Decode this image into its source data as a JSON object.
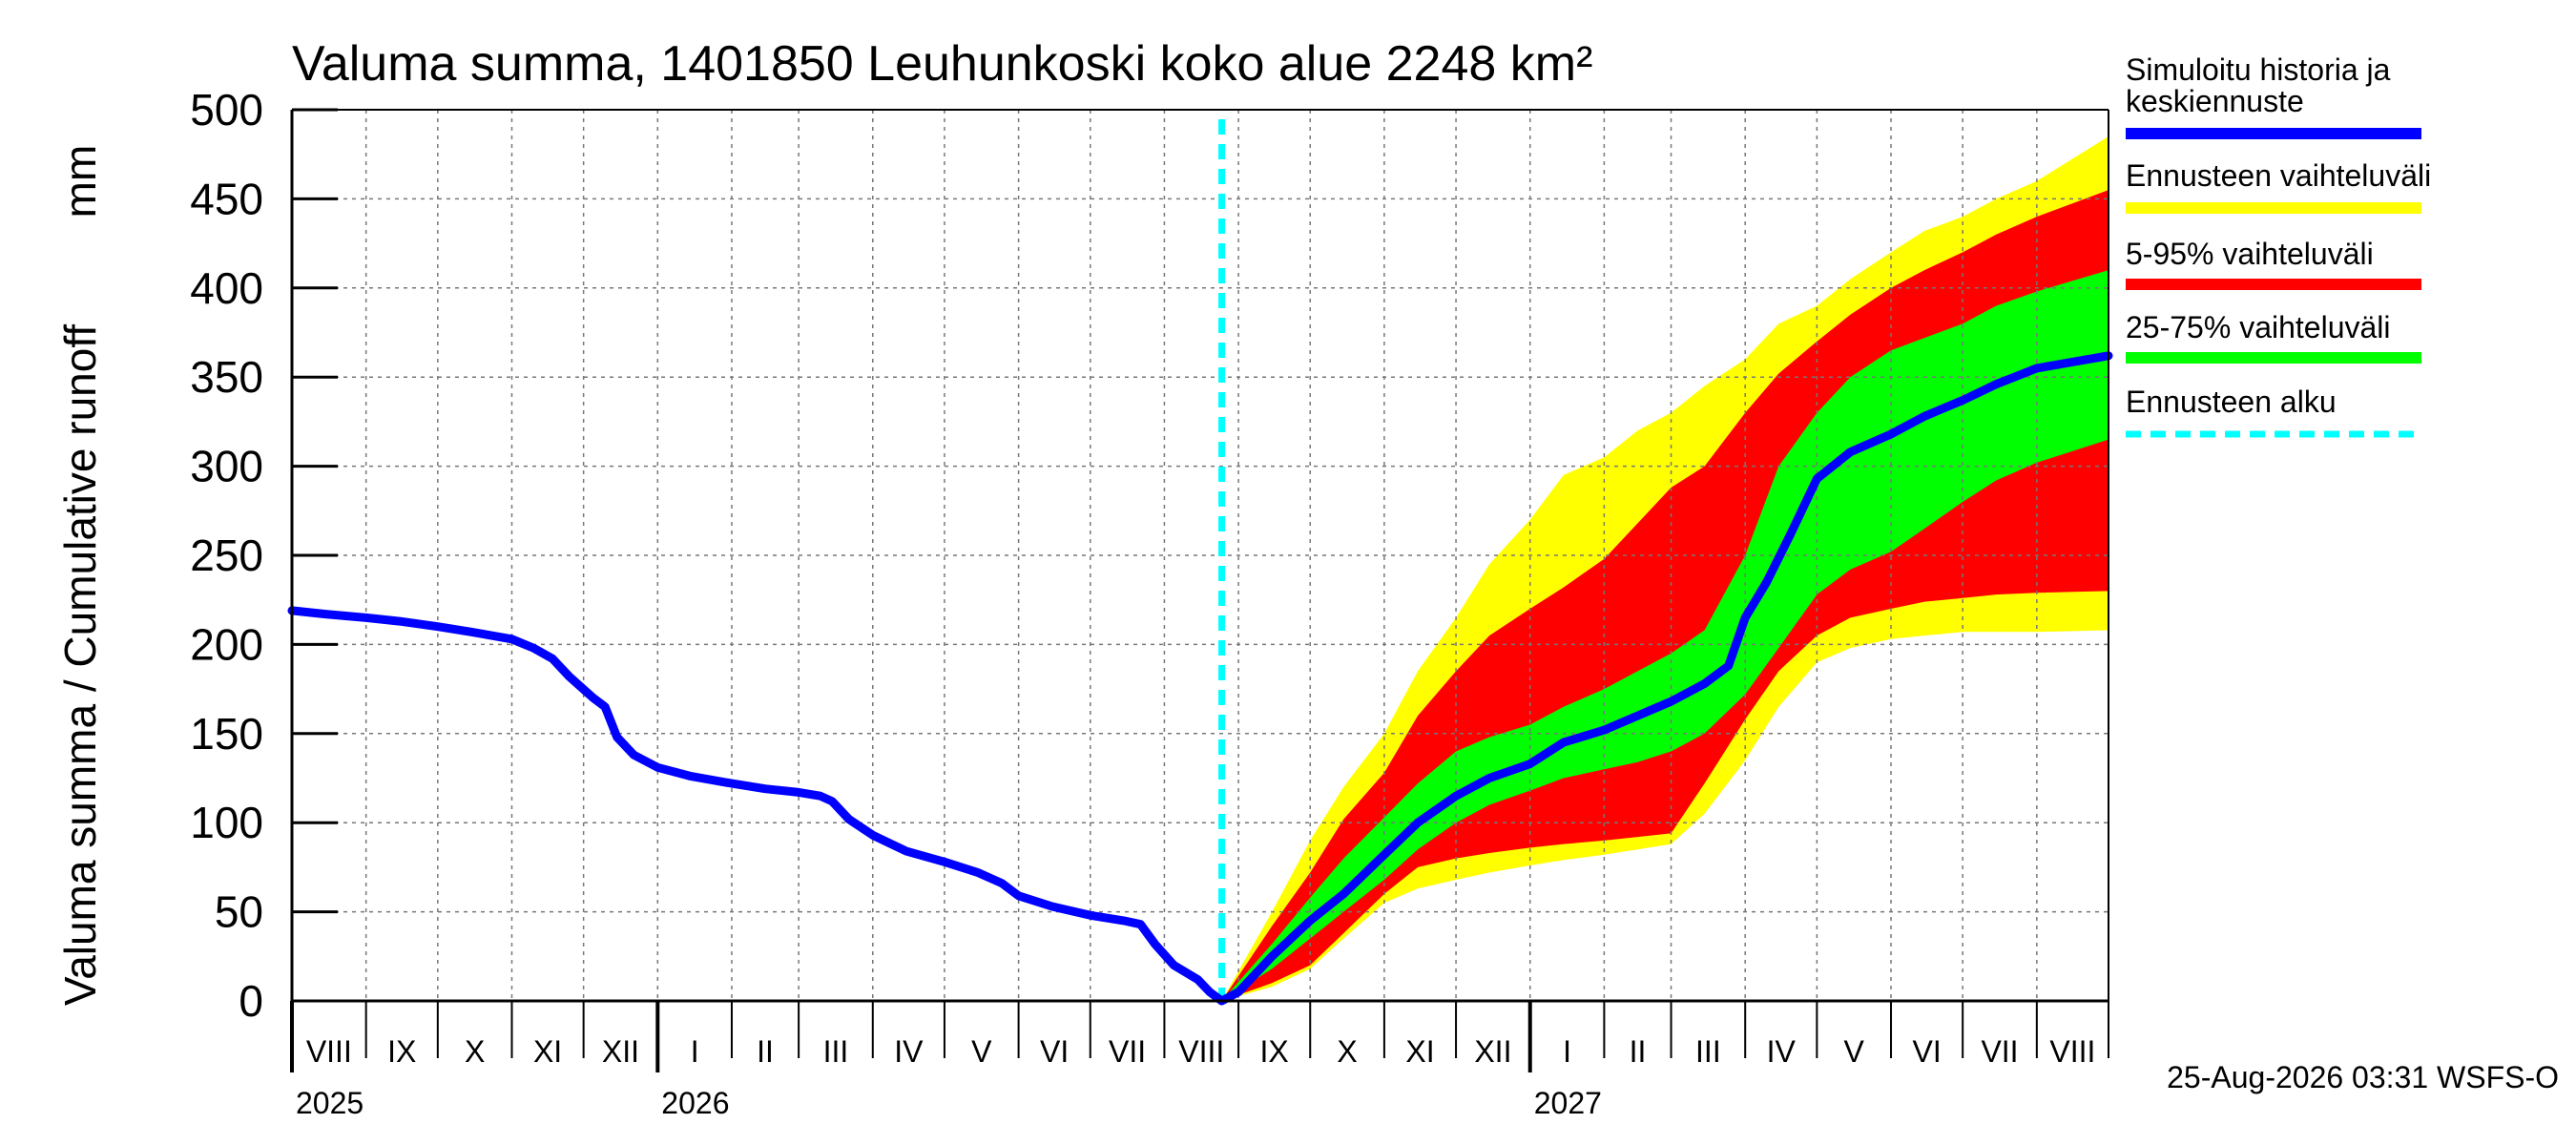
{
  "chart_data": {
    "type": "area",
    "title": "Valuma summa, 1401850 Leuhunkoski koko alue 2248 km²",
    "ylabel": "Valuma summa / Cumulative runoff",
    "yunit": "mm",
    "ylim": [
      0,
      500
    ],
    "yticks": [
      0,
      50,
      100,
      150,
      200,
      250,
      300,
      350,
      400,
      450,
      500
    ],
    "xlim": [
      "2025-08-01",
      "2027-08-31"
    ],
    "grid": true,
    "legend_position": "right",
    "forecast_start": "2026-08-25",
    "month_labels": [
      {
        "label": "VIII",
        "date": "2025-08-01"
      },
      {
        "label": "IX",
        "date": "2025-09-01"
      },
      {
        "label": "X",
        "date": "2025-10-01"
      },
      {
        "label": "XI",
        "date": "2025-11-01"
      },
      {
        "label": "XII",
        "date": "2025-12-01"
      },
      {
        "label": "I",
        "date": "2026-01-01"
      },
      {
        "label": "II",
        "date": "2026-02-01"
      },
      {
        "label": "III",
        "date": "2026-03-01"
      },
      {
        "label": "IV",
        "date": "2026-04-01"
      },
      {
        "label": "V",
        "date": "2026-05-01"
      },
      {
        "label": "VI",
        "date": "2026-06-01"
      },
      {
        "label": "VII",
        "date": "2026-07-01"
      },
      {
        "label": "VIII",
        "date": "2026-08-01"
      },
      {
        "label": "IX",
        "date": "2026-09-01"
      },
      {
        "label": "X",
        "date": "2026-10-01"
      },
      {
        "label": "XI",
        "date": "2026-11-01"
      },
      {
        "label": "XII",
        "date": "2026-12-01"
      },
      {
        "label": "I",
        "date": "2027-01-01"
      },
      {
        "label": "II",
        "date": "2027-02-01"
      },
      {
        "label": "III",
        "date": "2027-03-01"
      },
      {
        "label": "IV",
        "date": "2027-04-01"
      },
      {
        "label": "V",
        "date": "2027-05-01"
      },
      {
        "label": "VI",
        "date": "2027-06-01"
      },
      {
        "label": "VII",
        "date": "2027-07-01"
      },
      {
        "label": "VIII",
        "date": "2027-08-01"
      }
    ],
    "year_labels": [
      {
        "label": "2025",
        "date": "2025-08-01"
      },
      {
        "label": "2026",
        "date": "2026-01-01"
      },
      {
        "label": "2027",
        "date": "2027-01-01"
      }
    ],
    "series": [
      {
        "name": "Simuloitu historia ja keskiennuste",
        "color": "#0000ff",
        "points": [
          [
            "2025-08-01",
            219
          ],
          [
            "2025-08-15",
            217
          ],
          [
            "2025-09-01",
            215
          ],
          [
            "2025-09-15",
            213
          ],
          [
            "2025-10-01",
            210
          ],
          [
            "2025-10-15",
            207
          ],
          [
            "2025-11-01",
            203
          ],
          [
            "2025-11-10",
            198
          ],
          [
            "2025-11-18",
            192
          ],
          [
            "2025-11-25",
            182
          ],
          [
            "2025-12-05",
            170
          ],
          [
            "2025-12-10",
            165
          ],
          [
            "2025-12-15",
            148
          ],
          [
            "2025-12-22",
            138
          ],
          [
            "2026-01-01",
            131
          ],
          [
            "2026-01-15",
            126
          ],
          [
            "2026-02-01",
            122
          ],
          [
            "2026-02-15",
            119
          ],
          [
            "2026-03-01",
            117
          ],
          [
            "2026-03-10",
            115
          ],
          [
            "2026-03-15",
            112
          ],
          [
            "2026-03-22",
            102
          ],
          [
            "2026-04-01",
            93
          ],
          [
            "2026-04-15",
            84
          ],
          [
            "2026-05-01",
            78
          ],
          [
            "2026-05-15",
            72
          ],
          [
            "2026-05-25",
            66
          ],
          [
            "2026-06-01",
            59
          ],
          [
            "2026-06-15",
            53
          ],
          [
            "2026-07-01",
            48
          ],
          [
            "2026-07-15",
            45
          ],
          [
            "2026-07-22",
            43
          ],
          [
            "2026-07-28",
            32
          ],
          [
            "2026-08-05",
            20
          ],
          [
            "2026-08-15",
            12
          ],
          [
            "2026-08-20",
            5
          ],
          [
            "2026-08-25",
            0
          ],
          [
            "2026-09-01",
            5
          ],
          [
            "2026-09-15",
            25
          ],
          [
            "2026-10-01",
            45
          ],
          [
            "2026-10-15",
            60
          ],
          [
            "2026-11-01",
            82
          ],
          [
            "2026-11-15",
            100
          ],
          [
            "2026-12-01",
            115
          ],
          [
            "2026-12-15",
            125
          ],
          [
            "2027-01-01",
            133
          ],
          [
            "2027-01-15",
            145
          ],
          [
            "2027-02-01",
            152
          ],
          [
            "2027-02-15",
            160
          ],
          [
            "2027-03-01",
            168
          ],
          [
            "2027-03-15",
            178
          ],
          [
            "2027-03-25",
            188
          ],
          [
            "2027-04-01",
            215
          ],
          [
            "2027-04-10",
            235
          ],
          [
            "2027-04-20",
            262
          ],
          [
            "2027-05-01",
            293
          ],
          [
            "2027-05-15",
            308
          ],
          [
            "2027-06-01",
            318
          ],
          [
            "2027-06-15",
            328
          ],
          [
            "2027-07-01",
            337
          ],
          [
            "2027-07-15",
            346
          ],
          [
            "2027-08-01",
            355
          ],
          [
            "2027-08-31",
            362
          ]
        ]
      },
      {
        "name": "Ennusteen vaihteluväli",
        "color": "#ffff00",
        "x": [
          "2026-08-25",
          "2026-09-15",
          "2026-10-01",
          "2026-10-15",
          "2026-11-01",
          "2026-11-15",
          "2026-12-01",
          "2026-12-15",
          "2027-01-01",
          "2027-01-15",
          "2027-02-01",
          "2027-02-15",
          "2027-03-01",
          "2027-03-15",
          "2027-04-01",
          "2027-04-15",
          "2027-05-01",
          "2027-05-15",
          "2027-06-01",
          "2027-06-15",
          "2027-07-01",
          "2027-07-15",
          "2027-08-01",
          "2027-08-31"
        ],
        "lower": [
          0,
          8,
          18,
          35,
          55,
          63,
          68,
          72,
          76,
          79,
          82,
          85,
          88,
          105,
          135,
          165,
          190,
          198,
          203,
          205,
          207,
          207,
          207,
          208
        ],
        "upper": [
          0,
          50,
          90,
          120,
          150,
          185,
          215,
          245,
          270,
          295,
          305,
          320,
          330,
          345,
          360,
          380,
          390,
          405,
          420,
          432,
          440,
          450,
          460,
          485
        ]
      },
      {
        "name": "5-95% vaihteluväli",
        "color": "#ff0000",
        "x": [
          "2026-08-25",
          "2026-09-15",
          "2026-10-01",
          "2026-10-15",
          "2026-11-01",
          "2026-11-15",
          "2026-12-01",
          "2026-12-15",
          "2027-01-01",
          "2027-01-15",
          "2027-02-01",
          "2027-02-15",
          "2027-03-01",
          "2027-03-15",
          "2027-04-01",
          "2027-04-15",
          "2027-05-01",
          "2027-05-15",
          "2027-06-01",
          "2027-06-15",
          "2027-07-01",
          "2027-07-15",
          "2027-08-01",
          "2027-08-31"
        ],
        "lower": [
          0,
          10,
          20,
          38,
          60,
          75,
          80,
          83,
          86,
          88,
          90,
          92,
          94,
          122,
          158,
          185,
          205,
          215,
          220,
          224,
          226,
          228,
          229,
          230
        ],
        "upper": [
          0,
          42,
          72,
          102,
          128,
          160,
          185,
          205,
          220,
          232,
          248,
          268,
          288,
          300,
          330,
          352,
          370,
          385,
          400,
          410,
          420,
          430,
          440,
          455
        ]
      },
      {
        "name": "25-75% vaihteluväli",
        "color": "#00ff00",
        "x": [
          "2026-08-25",
          "2026-09-15",
          "2026-10-01",
          "2026-10-15",
          "2026-11-01",
          "2026-11-15",
          "2026-12-01",
          "2026-12-15",
          "2027-01-01",
          "2027-01-15",
          "2027-02-01",
          "2027-02-15",
          "2027-03-01",
          "2027-03-15",
          "2027-04-01",
          "2027-04-15",
          "2027-05-01",
          "2027-05-15",
          "2027-06-01",
          "2027-06-15",
          "2027-07-01",
          "2027-07-15",
          "2027-08-01",
          "2027-08-31"
        ],
        "lower": [
          0,
          18,
          35,
          50,
          68,
          85,
          100,
          110,
          118,
          125,
          130,
          134,
          140,
          150,
          172,
          198,
          228,
          242,
          252,
          265,
          280,
          292,
          302,
          315
        ],
        "upper": [
          0,
          32,
          58,
          80,
          103,
          122,
          140,
          148,
          155,
          165,
          175,
          185,
          195,
          208,
          250,
          300,
          330,
          350,
          365,
          372,
          380,
          390,
          398,
          410
        ]
      }
    ],
    "legend": [
      {
        "label": "Simuloitu historia ja keskiennuste",
        "color": "#0000ff",
        "style": "solid"
      },
      {
        "label": "Ennusteen vaihteluväli",
        "color": "#ffff00",
        "style": "solid"
      },
      {
        "label": "5-95% vaihteluväli",
        "color": "#ff0000",
        "style": "solid"
      },
      {
        "label": "25-75% vaihteluväli",
        "color": "#00ff00",
        "style": "solid"
      },
      {
        "label": "Ennusteen alku",
        "color": "#00ffff",
        "style": "dashed"
      }
    ],
    "timestamp": "25-Aug-2026 03:31 WSFS-O"
  }
}
